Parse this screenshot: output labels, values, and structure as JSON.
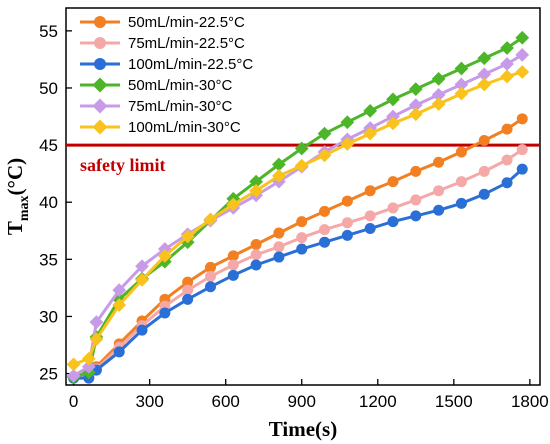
{
  "chart_data": {
    "type": "line",
    "xlabel": "Time(s)",
    "ylabel": {
      "main": "T",
      "sub": "max",
      "unit": "(°C)"
    },
    "xlim": [
      -30,
      1840
    ],
    "ylim": [
      24,
      57
    ],
    "x_ticks": [
      0,
      300,
      600,
      900,
      1200,
      1500,
      1800
    ],
    "y_ticks": [
      25,
      30,
      35,
      40,
      45,
      50,
      55
    ],
    "x": [
      0,
      60,
      90,
      180,
      270,
      360,
      450,
      540,
      630,
      720,
      810,
      900,
      990,
      1080,
      1170,
      1260,
      1350,
      1440,
      1530,
      1620,
      1710,
      1770
    ],
    "series": [
      {
        "name": "50mL/min-22.5°C",
        "color": "#f27f22",
        "marker": "circle",
        "values": [
          24.7,
          24.8,
          25.6,
          27.6,
          29.6,
          31.5,
          33.0,
          34.3,
          35.3,
          36.3,
          37.3,
          38.3,
          39.2,
          40.1,
          41.0,
          41.8,
          42.7,
          43.5,
          44.4,
          45.4,
          46.4,
          47.3
        ]
      },
      {
        "name": "75mL/min-22.5°C",
        "color": "#f5a8a8",
        "marker": "circle",
        "values": [
          24.6,
          24.7,
          25.4,
          27.3,
          29.2,
          30.9,
          32.3,
          33.5,
          34.5,
          35.4,
          36.1,
          36.9,
          37.6,
          38.2,
          38.8,
          39.5,
          40.2,
          41.0,
          41.8,
          42.7,
          43.7,
          44.6
        ]
      },
      {
        "name": "100mL/min-22.5°C",
        "color": "#2a6fd6",
        "marker": "circle",
        "values": [
          24.6,
          24.6,
          25.3,
          26.9,
          28.8,
          30.3,
          31.5,
          32.6,
          33.6,
          34.5,
          35.2,
          35.9,
          36.5,
          37.1,
          37.7,
          38.3,
          38.8,
          39.3,
          39.9,
          40.7,
          41.7,
          42.9
        ]
      },
      {
        "name": "50mL/min-30°C",
        "color": "#4cb528",
        "marker": "diamond",
        "values": [
          24.7,
          25.1,
          28.2,
          31.5,
          33.3,
          34.8,
          36.5,
          38.4,
          40.3,
          41.8,
          43.3,
          44.7,
          46.0,
          47.0,
          48.0,
          49.0,
          49.9,
          50.8,
          51.7,
          52.6,
          53.5,
          54.4
        ]
      },
      {
        "name": "75mL/min-30°C",
        "color": "#c89be8",
        "marker": "diamond",
        "values": [
          24.8,
          25.6,
          29.5,
          32.3,
          34.4,
          35.9,
          37.2,
          38.4,
          39.5,
          40.6,
          41.8,
          43.1,
          44.4,
          45.5,
          46.5,
          47.5,
          48.5,
          49.4,
          50.3,
          51.2,
          52.1,
          52.9
        ]
      },
      {
        "name": "100mL/min-30°C",
        "color": "#f9c21c",
        "marker": "diamond",
        "values": [
          25.8,
          26.3,
          28.0,
          31.0,
          33.2,
          35.3,
          37.0,
          38.5,
          39.8,
          41.0,
          42.3,
          43.2,
          44.1,
          45.1,
          46.0,
          46.9,
          47.7,
          48.6,
          49.5,
          50.3,
          51.0,
          51.4
        ]
      }
    ],
    "reference_line": {
      "y": 45,
      "color": "#c00000",
      "label": "safety limit"
    },
    "legend": {
      "placement": "top-left"
    },
    "grid": false
  }
}
